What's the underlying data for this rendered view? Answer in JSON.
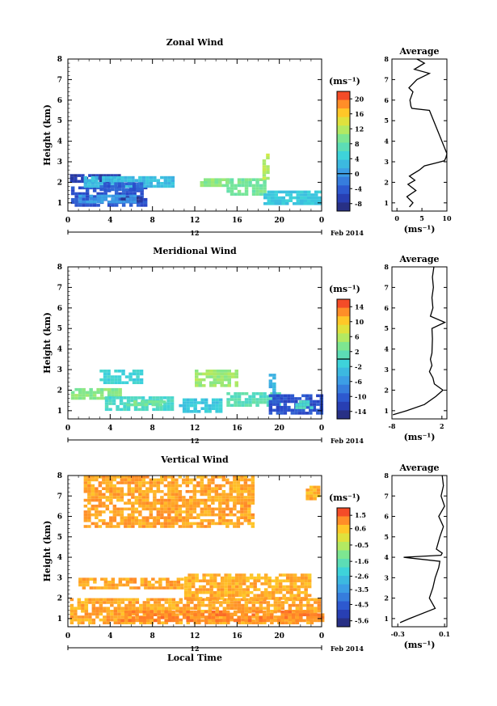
{
  "figure": {
    "xlabel": "Local Time",
    "date_label": "Feb 2014",
    "day_label": "12"
  },
  "chart_data": [
    {
      "type": "heatmap",
      "title": "Zonal Wind",
      "xlabel": "Local Time",
      "ylabel": "Height (km)",
      "x_ticks": [
        "0",
        "4",
        "8",
        "12",
        "16",
        "20",
        "0"
      ],
      "y_ticks": [
        "1",
        "2",
        "3",
        "4",
        "5",
        "6",
        "7",
        "8"
      ],
      "ylim": [
        0.6,
        8.0
      ],
      "colorbar": {
        "unit": "(ms⁻¹)",
        "ticks": [
          "20",
          "16",
          "12",
          "8",
          "4",
          "0",
          "-4",
          "-8"
        ],
        "range": [
          -10,
          22
        ],
        "zero_line": 0
      },
      "regions": [
        {
          "x": [
            0.2,
            5.0
          ],
          "y": [
            2.0,
            2.4
          ],
          "value": -7
        },
        {
          "x": [
            0.3,
            7.5
          ],
          "y": [
            0.9,
            1.8
          ],
          "value": -5
        },
        {
          "x": [
            1.5,
            9.8
          ],
          "y": [
            1.8,
            2.3
          ],
          "value": 3
        },
        {
          "x": [
            3.0,
            7.0
          ],
          "y": [
            1.6,
            2.0
          ],
          "value": -4
        },
        {
          "x": [
            5.0,
            7.0
          ],
          "y": [
            1.0,
            1.3
          ],
          "value": -8
        },
        {
          "x": [
            15.0,
            18.5
          ],
          "y": [
            1.4,
            2.2
          ],
          "value": 9
        },
        {
          "x": [
            18.5,
            23.8
          ],
          "y": [
            0.9,
            1.6
          ],
          "value": 4
        },
        {
          "x": [
            12.5,
            15.0
          ],
          "y": [
            1.8,
            2.2
          ],
          "value": 10
        },
        {
          "x": [
            1.0,
            6.5
          ],
          "y": [
            1.0,
            1.4
          ],
          "value": 0
        },
        {
          "x": [
            18.4,
            19.0
          ],
          "y": [
            2.2,
            3.4
          ],
          "value": 12
        }
      ],
      "average": {
        "title": "Average",
        "xlabel": "(ms⁻¹)",
        "x_ticks": [
          "0",
          "5",
          "10"
        ],
        "xlim": [
          -1,
          10
        ],
        "height": [
          0.8,
          1.0,
          1.3,
          1.6,
          1.9,
          2.1,
          2.3,
          2.6,
          2.8,
          2.95,
          3.05,
          3.2,
          3.4,
          5.5,
          5.6,
          5.7,
          6.0,
          6.4,
          6.6,
          7.0,
          7.3,
          7.5,
          7.8,
          8.0
        ],
        "value": [
          2.5,
          3.2,
          2.0,
          3.8,
          2.2,
          3.6,
          2.5,
          4.5,
          5.5,
          8.0,
          9.5,
          9.8,
          10.0,
          6.5,
          3.0,
          2.8,
          2.6,
          3.2,
          2.4,
          4.0,
          6.5,
          3.5,
          5.5,
          4.0
        ]
      }
    },
    {
      "type": "heatmap",
      "title": "Meridional Wind",
      "xlabel": "Local Time",
      "ylabel": "Height (km)",
      "x_ticks": [
        "0",
        "4",
        "8",
        "12",
        "16",
        "20",
        "0"
      ],
      "y_ticks": [
        "1",
        "2",
        "3",
        "4",
        "5",
        "6",
        "7",
        "8"
      ],
      "ylim": [
        0.6,
        8.0
      ],
      "colorbar": {
        "unit": "(ms⁻¹)",
        "ticks": [
          "14",
          "10",
          "6",
          "2",
          "-2",
          "-6",
          "-10",
          "-14"
        ],
        "range": [
          -16,
          16
        ],
        "zero_line": 0
      },
      "regions": [
        {
          "x": [
            0.3,
            5.0
          ],
          "y": [
            1.6,
            2.1
          ],
          "value": 4
        },
        {
          "x": [
            3.5,
            10.0
          ],
          "y": [
            1.0,
            1.7
          ],
          "value": 0
        },
        {
          "x": [
            5.5,
            9.0
          ],
          "y": [
            1.2,
            1.5
          ],
          "value": 3
        },
        {
          "x": [
            10.5,
            14.5
          ],
          "y": [
            1.0,
            1.6
          ],
          "value": -2
        },
        {
          "x": [
            15.0,
            20.0
          ],
          "y": [
            1.2,
            1.9
          ],
          "value": 1
        },
        {
          "x": [
            19.0,
            24.0
          ],
          "y": [
            0.9,
            1.8
          ],
          "value": -11
        },
        {
          "x": [
            21.5,
            23.0
          ],
          "y": [
            1.1,
            1.5
          ],
          "value": 0
        },
        {
          "x": [
            12.0,
            16.0
          ],
          "y": [
            2.2,
            3.0
          ],
          "value": 5
        },
        {
          "x": [
            3.0,
            7.0
          ],
          "y": [
            2.4,
            3.0
          ],
          "value": -1
        },
        {
          "x": [
            19.0,
            19.5
          ],
          "y": [
            1.9,
            2.8
          ],
          "value": -4
        }
      ],
      "average": {
        "title": "Average",
        "xlabel": "(ms⁻¹)",
        "x_ticks": [
          "-8",
          "2"
        ],
        "xlim": [
          -8,
          3
        ],
        "height": [
          0.8,
          1.0,
          1.3,
          1.7,
          2.0,
          2.3,
          2.6,
          2.9,
          3.2,
          3.5,
          3.8,
          4.5,
          5.0,
          5.3,
          5.6,
          6.0,
          6.5,
          7.0,
          7.5,
          8.0
        ],
        "value": [
          -7.8,
          -5.0,
          -1.5,
          0.8,
          2.2,
          0.5,
          0.2,
          -0.5,
          0.0,
          -0.3,
          0.0,
          0.1,
          0.0,
          2.6,
          -0.3,
          0.2,
          0.0,
          0.3,
          0.1,
          0.4
        ]
      }
    },
    {
      "type": "heatmap",
      "title": "Vertical Wind",
      "xlabel": "Local Time",
      "ylabel": "Height (km)",
      "x_ticks": [
        "0",
        "4",
        "8",
        "12",
        "16",
        "20",
        "0"
      ],
      "y_ticks": [
        "1",
        "2",
        "3",
        "4",
        "5",
        "6",
        "7",
        "8"
      ],
      "ylim": [
        0.6,
        8.0
      ],
      "colorbar": {
        "unit": "(ms⁻¹)",
        "ticks": [
          "1.5",
          "0.6",
          "-0.5",
          "-1.6",
          "-2.6",
          "-3.5",
          "-4.5",
          "-5.6"
        ],
        "range": [
          -6,
          2
        ],
        "zero_line": null
      },
      "regions": [
        {
          "x": [
            0.2,
            23.8
          ],
          "y": [
            0.7,
            2.0
          ],
          "value": 0.9
        },
        {
          "x": [
            5.0,
            24.0
          ],
          "y": [
            0.9,
            1.4
          ],
          "value": 1.2
        },
        {
          "x": [
            1.0,
            11.0
          ],
          "y": [
            2.5,
            3.0
          ],
          "value": 0.9
        },
        {
          "x": [
            11.0,
            23.0
          ],
          "y": [
            2.0,
            3.2
          ],
          "value": 0.8
        },
        {
          "x": [
            1.5,
            17.5
          ],
          "y": [
            5.5,
            8.0
          ],
          "value": 0.9
        },
        {
          "x": [
            22.5,
            23.8
          ],
          "y": [
            6.8,
            7.5
          ],
          "value": 0.8
        }
      ],
      "average": {
        "title": "Average",
        "xlabel": "(ms⁻¹)",
        "x_ticks": [
          "-0.3",
          "0.1"
        ],
        "xlim": [
          -0.35,
          0.12
        ],
        "height": [
          0.8,
          1.0,
          1.5,
          2.0,
          2.5,
          3.0,
          3.5,
          3.8,
          4.0,
          4.1,
          4.2,
          4.4,
          5.0,
          5.5,
          6.0,
          6.5,
          7.0,
          7.5,
          8.0
        ],
        "value": [
          -0.28,
          -0.2,
          0.02,
          -0.03,
          0.0,
          0.02,
          0.05,
          0.06,
          -0.25,
          0.07,
          0.08,
          0.03,
          0.06,
          0.09,
          0.05,
          0.1,
          0.07,
          0.09,
          0.08
        ]
      }
    }
  ]
}
